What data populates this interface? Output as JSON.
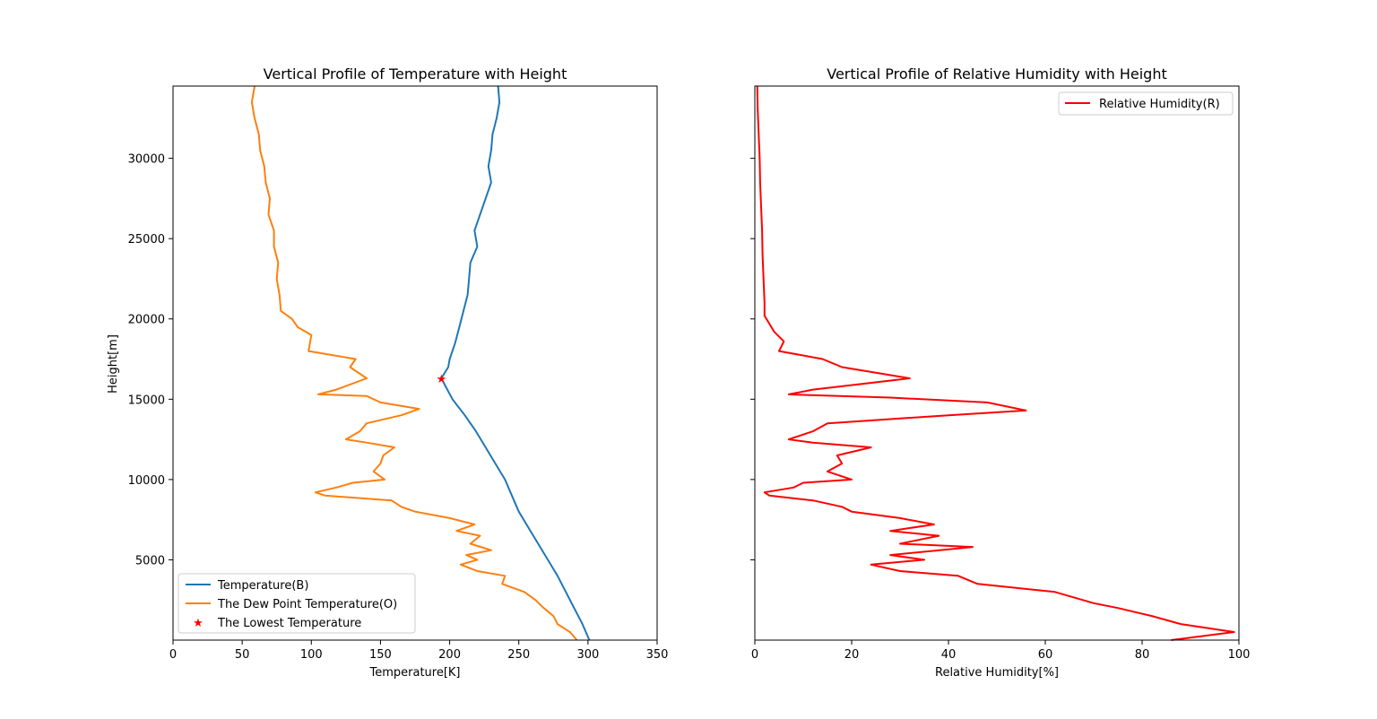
{
  "chart_data": [
    {
      "type": "line",
      "title": "Vertical Profile of Temperature with Height",
      "xlabel": "Temperature[K]",
      "ylabel": "Height[m]",
      "xlim": [
        0,
        350
      ],
      "ylim": [
        0,
        34500
      ],
      "xticks": [
        0,
        50,
        100,
        150,
        200,
        250,
        300,
        350
      ],
      "yticks": [
        5000,
        10000,
        15000,
        20000,
        25000,
        30000
      ],
      "legend_position": "lower-left",
      "series": [
        {
          "name": "Temperature(B)",
          "color": "#1f77b4",
          "points": [
            [
              301,
              0
            ],
            [
              296,
              1000
            ],
            [
              290,
              2000
            ],
            [
              284,
              3000
            ],
            [
              278,
              4000
            ],
            [
              271,
              5000
            ],
            [
              264,
              6000
            ],
            [
              257,
              7000
            ],
            [
              250,
              8000
            ],
            [
              245,
              9000
            ],
            [
              240,
              10000
            ],
            [
              233,
              11000
            ],
            [
              226,
              12000
            ],
            [
              219,
              13000
            ],
            [
              211,
              14000
            ],
            [
              202,
              15000
            ],
            [
              194,
              16300
            ],
            [
              199,
              17000
            ],
            [
              200,
              17500
            ],
            [
              204,
              18500
            ],
            [
              207,
              19500
            ],
            [
              210,
              20500
            ],
            [
              213,
              21500
            ],
            [
              214,
              22500
            ],
            [
              215,
              23500
            ],
            [
              220,
              24500
            ],
            [
              218,
              25500
            ],
            [
              222,
              26500
            ],
            [
              226,
              27500
            ],
            [
              230,
              28500
            ],
            [
              228,
              29500
            ],
            [
              230,
              30500
            ],
            [
              231,
              31500
            ],
            [
              234,
              32500
            ],
            [
              236,
              33500
            ],
            [
              235,
              34500
            ]
          ]
        },
        {
          "name": "The Dew Point Temperature(O)",
          "color": "#ff7f0e",
          "points": [
            [
              292,
              0
            ],
            [
              287,
              500
            ],
            [
              278,
              1000
            ],
            [
              275,
              1500
            ],
            [
              268,
              2000
            ],
            [
              262,
              2500
            ],
            [
              254,
              3000
            ],
            [
              238,
              3500
            ],
            [
              240,
              4000
            ],
            [
              220,
              4300
            ],
            [
              208,
              4700
            ],
            [
              220,
              5000
            ],
            [
              212,
              5300
            ],
            [
              230,
              5600
            ],
            [
              215,
              6000
            ],
            [
              222,
              6500
            ],
            [
              205,
              6800
            ],
            [
              218,
              7200
            ],
            [
              200,
              7600
            ],
            [
              175,
              8000
            ],
            [
              165,
              8300
            ],
            [
              158,
              8700
            ],
            [
              110,
              9000
            ],
            [
              103,
              9200
            ],
            [
              118,
              9500
            ],
            [
              130,
              9800
            ],
            [
              153,
              10000
            ],
            [
              145,
              10500
            ],
            [
              150,
              11000
            ],
            [
              152,
              11500
            ],
            [
              160,
              12000
            ],
            [
              140,
              12300
            ],
            [
              125,
              12500
            ],
            [
              135,
              13000
            ],
            [
              140,
              13500
            ],
            [
              165,
              14000
            ],
            [
              178,
              14400
            ],
            [
              150,
              14800
            ],
            [
              140,
              15200
            ],
            [
              105,
              15300
            ],
            [
              118,
              15600
            ],
            [
              140,
              16300
            ],
            [
              128,
              17000
            ],
            [
              132,
              17500
            ],
            [
              98,
              18000
            ],
            [
              100,
              19000
            ],
            [
              90,
              19500
            ],
            [
              86,
              20000
            ],
            [
              78,
              20500
            ],
            [
              77,
              21500
            ],
            [
              75,
              22500
            ],
            [
              76,
              23500
            ],
            [
              73,
              24500
            ],
            [
              73,
              25500
            ],
            [
              69,
              26500
            ],
            [
              70,
              27500
            ],
            [
              67,
              28500
            ],
            [
              66,
              29500
            ],
            [
              63,
              30500
            ],
            [
              62,
              31500
            ],
            [
              59,
              32500
            ],
            [
              57,
              33500
            ],
            [
              59,
              34500
            ]
          ]
        },
        {
          "name": "The Lowest Temperature",
          "color": "#ff0000",
          "marker": "star",
          "points": [
            [
              194,
              16300
            ]
          ]
        }
      ]
    },
    {
      "type": "line",
      "title": "Vertical Profile of Relative Humidity with Height",
      "xlabel": "Relative Humidity[%]",
      "ylabel": "",
      "xlim": [
        0,
        100
      ],
      "ylim": [
        0,
        34500
      ],
      "xticks": [
        0,
        20,
        40,
        60,
        80,
        100
      ],
      "legend_position": "upper-right",
      "series": [
        {
          "name": "Relative Humidity(R)",
          "color": "#ff0000",
          "points": [
            [
              86,
              0
            ],
            [
              99,
              500
            ],
            [
              88,
              1000
            ],
            [
              82,
              1500
            ],
            [
              75,
              2000
            ],
            [
              70,
              2300
            ],
            [
              62,
              3000
            ],
            [
              46,
              3500
            ],
            [
              42,
              4000
            ],
            [
              30,
              4300
            ],
            [
              24,
              4700
            ],
            [
              35,
              5000
            ],
            [
              28,
              5300
            ],
            [
              45,
              5800
            ],
            [
              30,
              6000
            ],
            [
              38,
              6500
            ],
            [
              28,
              6800
            ],
            [
              37,
              7200
            ],
            [
              30,
              7600
            ],
            [
              20,
              8000
            ],
            [
              18,
              8300
            ],
            [
              12,
              8700
            ],
            [
              3,
              9000
            ],
            [
              2,
              9200
            ],
            [
              8,
              9500
            ],
            [
              10,
              9800
            ],
            [
              20,
              10000
            ],
            [
              15,
              10500
            ],
            [
              18,
              11000
            ],
            [
              17,
              11500
            ],
            [
              24,
              12000
            ],
            [
              12,
              12300
            ],
            [
              7,
              12500
            ],
            [
              12,
              13000
            ],
            [
              15,
              13500
            ],
            [
              40,
              14000
            ],
            [
              56,
              14300
            ],
            [
              48,
              14800
            ],
            [
              28,
              15100
            ],
            [
              7,
              15300
            ],
            [
              12,
              15600
            ],
            [
              32,
              16300
            ],
            [
              18,
              17000
            ],
            [
              14,
              17500
            ],
            [
              5,
              18000
            ],
            [
              6,
              18600
            ],
            [
              4,
              19200
            ],
            [
              3,
              19700
            ],
            [
              2,
              20200
            ],
            [
              2,
              21000
            ],
            [
              1.8,
              22500
            ],
            [
              1.6,
              24000
            ],
            [
              1.5,
              25500
            ],
            [
              1.3,
              27000
            ],
            [
              1.1,
              28500
            ],
            [
              1.0,
              30000
            ],
            [
              0.8,
              31500
            ],
            [
              0.6,
              33000
            ],
            [
              0.5,
              34500
            ]
          ]
        }
      ]
    }
  ]
}
